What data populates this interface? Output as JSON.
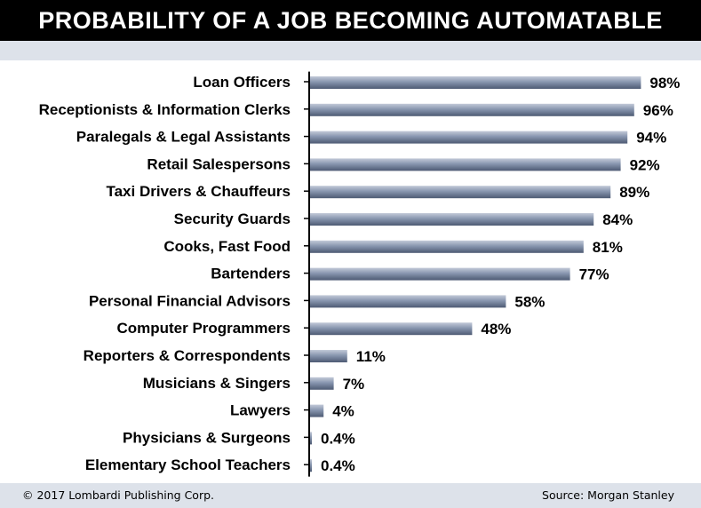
{
  "header": {
    "title": "PROBABILITY OF A JOB BECOMING AUTOMATABLE"
  },
  "footer": {
    "copyright": "© 2017 Lombardi Publishing Corp.",
    "source": "Source: Morgan Stanley"
  },
  "colors": {
    "bar_light": "#c3cad8",
    "bar_mid": "#8795ae",
    "bar_dark": "#4d5a73",
    "title_bg": "#000000",
    "band_bg": "#dde2ea"
  },
  "chart_data": {
    "type": "bar",
    "orientation": "horizontal",
    "categories": [
      "Loan Officers",
      "Receptionists & Information Clerks",
      "Paralegals & Legal Assistants",
      "Retail Salespersons",
      "Taxi Drivers & Chauffeurs",
      "Security Guards",
      "Cooks, Fast Food",
      "Bartenders",
      "Personal Financial Advisors",
      "Computer Programmers",
      "Reporters & Correspondents",
      "Musicians & Singers",
      "Lawyers",
      "Physicians & Surgeons",
      "Elementary School Teachers"
    ],
    "values": [
      98,
      96,
      94,
      92,
      89,
      84,
      81,
      77,
      58,
      48,
      11,
      7,
      4,
      0.4,
      0.4
    ],
    "data_labels": [
      "98%",
      "96%",
      "94%",
      "92%",
      "89%",
      "84%",
      "81%",
      "77%",
      "58%",
      "48%",
      "11%",
      "7%",
      "4%",
      "0.4%",
      "0.4%"
    ],
    "title": "PROBABILITY OF A JOB BECOMING AUTOMATABLE",
    "xlim": [
      0,
      100
    ],
    "grid": false,
    "legend": "none"
  }
}
